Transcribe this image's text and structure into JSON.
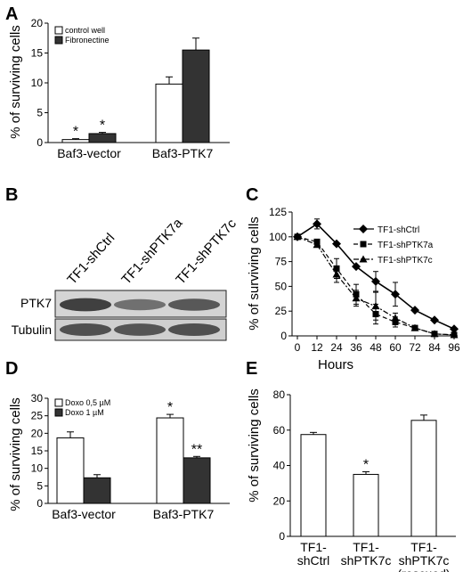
{
  "panels": [
    {
      "id": "A",
      "label": "A"
    },
    {
      "id": "B",
      "label": "B"
    },
    {
      "id": "C",
      "label": "C"
    },
    {
      "id": "D",
      "label": "D"
    },
    {
      "id": "E",
      "label": "E"
    }
  ],
  "blot": {
    "lanes": [
      "TF1-shCtrl",
      "TF1-shPTK7a",
      "TF1-shPTK7c"
    ],
    "rows": [
      {
        "label": "PTK7",
        "intensities": [
          0.85,
          0.55,
          0.7
        ]
      },
      {
        "label": "Tubulin",
        "intensities": [
          0.75,
          0.72,
          0.75
        ]
      }
    ]
  },
  "chart_data": [
    {
      "panel": "A",
      "type": "bar",
      "categories": [
        "Baf3-vector",
        "Baf3-PTK7"
      ],
      "series": [
        {
          "name": "control well",
          "color": "#ffffff",
          "values": [
            0.5,
            9.8
          ],
          "errors": [
            0.15,
            1.2
          ]
        },
        {
          "name": "Fibronectine",
          "color": "#333333",
          "values": [
            1.5,
            15.5
          ],
          "errors": [
            0.2,
            2.0
          ]
        }
      ],
      "annotations": [
        {
          "category": 0,
          "series": 0,
          "text": "*"
        },
        {
          "category": 0,
          "series": 1,
          "text": "*"
        }
      ],
      "ylabel": "% of surviving cells",
      "ylim": [
        0,
        20
      ],
      "yticks": [
        0,
        5,
        10,
        15,
        20
      ],
      "legend": "top-left"
    },
    {
      "panel": "C",
      "type": "line",
      "xlabel": "Hours",
      "ylabel": "% of surviving cells",
      "xlim": [
        0,
        96
      ],
      "xticks": [
        0,
        12,
        24,
        36,
        48,
        60,
        72,
        84,
        96
      ],
      "ylim": [
        0,
        125
      ],
      "yticks": [
        0,
        25,
        50,
        75,
        100,
        125
      ],
      "legend": "top-right",
      "series": [
        {
          "name": "TF1-shCtrl",
          "marker": "diamond",
          "dash": "solid",
          "x": [
            0,
            12,
            24,
            36,
            48,
            60,
            72,
            84,
            96
          ],
          "y": [
            100,
            113,
            93,
            70,
            55,
            42,
            26,
            16,
            7
          ],
          "errors": [
            0,
            5,
            0,
            0,
            10,
            12,
            0,
            0,
            0
          ]
        },
        {
          "name": "TF1-shPTK7a",
          "marker": "square",
          "dash": "dashed",
          "x": [
            0,
            12,
            24,
            36,
            48,
            60,
            72,
            84,
            96
          ],
          "y": [
            100,
            95,
            68,
            42,
            22,
            14,
            8,
            2,
            1
          ],
          "errors": [
            0,
            0,
            10,
            10,
            10,
            5,
            0,
            0,
            0
          ]
        },
        {
          "name": "TF1-shPTK7c",
          "marker": "triangle",
          "dash": "dashdot",
          "x": [
            0,
            12,
            24,
            36,
            48,
            60,
            72,
            84,
            96
          ],
          "y": [
            100,
            92,
            62,
            38,
            30,
            18,
            8,
            2,
            1
          ],
          "errors": [
            0,
            0,
            8,
            8,
            14,
            5,
            0,
            0,
            0
          ]
        }
      ]
    },
    {
      "panel": "D",
      "type": "bar",
      "categories": [
        "Baf3-vector",
        "Baf3-PTK7"
      ],
      "series": [
        {
          "name": "Doxo 0,5 µM",
          "color": "#ffffff",
          "values": [
            18.7,
            24.4
          ],
          "errors": [
            1.7,
            1.0
          ]
        },
        {
          "name": "Doxo 1 µM",
          "color": "#333333",
          "values": [
            7.3,
            13.0
          ],
          "errors": [
            0.9,
            0.4
          ]
        }
      ],
      "annotations": [
        {
          "category": 1,
          "series": 0,
          "text": "*"
        },
        {
          "category": 1,
          "series": 1,
          "text": "**"
        }
      ],
      "ylabel": "% of surviving cells",
      "ylim": [
        0,
        30
      ],
      "yticks": [
        0,
        5,
        10,
        15,
        20,
        25,
        30
      ],
      "legend": "top-left"
    },
    {
      "panel": "E",
      "type": "bar",
      "categories": [
        [
          "TF1-",
          "shCtrl"
        ],
        [
          "TF1-",
          "shPTK7c"
        ],
        [
          "TF1-",
          "shPTK7c",
          "(rescued)"
        ]
      ],
      "series": [
        {
          "name": "",
          "color": "#ffffff",
          "values": [
            57.5,
            35.0,
            65.5
          ],
          "errors": [
            1.2,
            1.5,
            3.0
          ]
        }
      ],
      "annotations": [
        {
          "category": 1,
          "series": 0,
          "text": "*"
        }
      ],
      "ylabel": "% of surviving cells",
      "ylim": [
        0,
        80
      ],
      "yticks": [
        0,
        20,
        40,
        60,
        80
      ]
    }
  ]
}
